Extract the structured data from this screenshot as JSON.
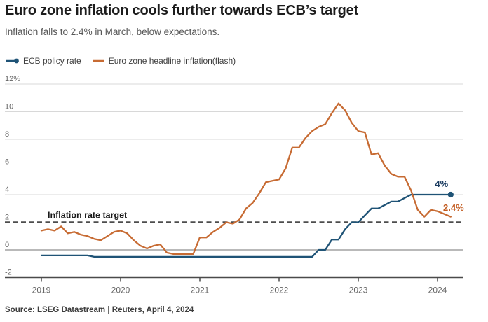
{
  "header": {
    "title": "Euro zone inflation cools further towards ECB’s target",
    "subtitle": "Inflation falls to 2.4% in March, below expectations."
  },
  "legend": [
    {
      "label": "ECB policy rate",
      "marker": "line-dot",
      "color": "#1f5376"
    },
    {
      "label": "Euro zone headline inflation(flash)",
      "marker": "line",
      "color": "#c76b33"
    }
  ],
  "source": "Source: LSEG Datastream | Reuters, April 4, 2024",
  "colors": {
    "policy_line": "#1f5376",
    "policy_label": "#1b3c61",
    "inflation_line": "#c76b33",
    "inflation_label": "#c25a1e",
    "grid_light": "#d8d8d8",
    "grid_zero": "#8f8f8f",
    "axis": "#4a4a4a",
    "tick_text": "#666666",
    "target_line": "#4d4d4d",
    "target_text": "#1a1a1a"
  },
  "chart_data": {
    "type": "line",
    "title": "Euro zone inflation cools further towards ECB’s target",
    "x_start": {
      "year": 2019,
      "month": 1
    },
    "x_frequency": "monthly",
    "x_ticks": [
      "2019",
      "2020",
      "2021",
      "2022",
      "2023",
      "2024"
    ],
    "ylim": [
      -2,
      12
    ],
    "grid": "horizontal",
    "legend_position": "top-left",
    "y_ticks": [
      {
        "value": 12,
        "label": "12%",
        "line": "light"
      },
      {
        "value": 10,
        "label": "10",
        "line": "light"
      },
      {
        "value": 8,
        "label": "8",
        "line": "light"
      },
      {
        "value": 6,
        "label": "6",
        "line": "light"
      },
      {
        "value": 4,
        "label": "4",
        "line": "light"
      },
      {
        "value": 2,
        "label": "2",
        "line": "none"
      },
      {
        "value": 0,
        "label": "0",
        "line": "medium"
      },
      {
        "value": -2,
        "label": "-2",
        "line": "axis"
      }
    ],
    "target_line": {
      "value": 2,
      "label": "Inflation rate target"
    },
    "series": [
      {
        "name": "ECB policy rate",
        "color": "#1f5376",
        "end_marker": "dot",
        "end_label": "4%",
        "end_label_color": "#1b3c61",
        "values": [
          -0.4,
          -0.4,
          -0.4,
          -0.4,
          -0.4,
          -0.4,
          -0.4,
          -0.4,
          -0.5,
          -0.5,
          -0.5,
          -0.5,
          -0.5,
          -0.5,
          -0.5,
          -0.5,
          -0.5,
          -0.5,
          -0.5,
          -0.5,
          -0.5,
          -0.5,
          -0.5,
          -0.5,
          -0.5,
          -0.5,
          -0.5,
          -0.5,
          -0.5,
          -0.5,
          -0.5,
          -0.5,
          -0.5,
          -0.5,
          -0.5,
          -0.5,
          -0.5,
          -0.5,
          -0.5,
          -0.5,
          -0.5,
          -0.5,
          0.0,
          0.0,
          0.75,
          0.75,
          1.5,
          2.0,
          2.0,
          2.5,
          3.0,
          3.0,
          3.25,
          3.5,
          3.5,
          3.75,
          4.0,
          4.0,
          4.0,
          4.0,
          4.0,
          4.0,
          4.0
        ]
      },
      {
        "name": "Euro zone headline inflation(flash)",
        "color": "#c76b33",
        "end_marker": "none",
        "end_label": "2.4%",
        "end_label_color": "#c25a1e",
        "values": [
          1.4,
          1.5,
          1.4,
          1.7,
          1.2,
          1.3,
          1.1,
          1.0,
          0.8,
          0.7,
          1.0,
          1.3,
          1.4,
          1.2,
          0.7,
          0.3,
          0.1,
          0.3,
          0.4,
          -0.2,
          -0.3,
          -0.3,
          -0.3,
          -0.3,
          0.9,
          0.9,
          1.3,
          1.6,
          2.0,
          1.9,
          2.2,
          3.0,
          3.4,
          4.1,
          4.9,
          5.0,
          5.1,
          5.9,
          7.4,
          7.4,
          8.1,
          8.6,
          8.9,
          9.1,
          9.9,
          10.6,
          10.1,
          9.2,
          8.6,
          8.5,
          6.9,
          7.0,
          6.1,
          5.5,
          5.3,
          5.3,
          4.3,
          2.9,
          2.4,
          2.9,
          2.8,
          2.6,
          2.4
        ]
      }
    ]
  }
}
